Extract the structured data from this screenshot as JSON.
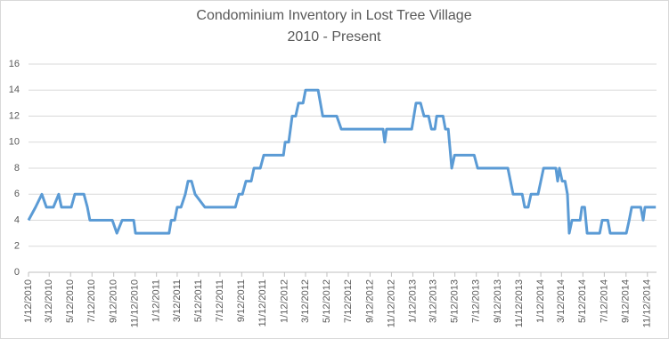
{
  "chart_data": {
    "type": "line",
    "title": [
      "Condominium Inventory in Lost Tree Village",
      "2010 - Present"
    ],
    "x": [
      "1/12/2010",
      "2/1/2010",
      "2/19/2010",
      "3/4/2010",
      "3/24/2010",
      "4/8/2010",
      "4/16/2010",
      "5/14/2010",
      "5/24/2010",
      "6/19/2010",
      "6/29/2010",
      "7/6/2010",
      "9/8/2010",
      "9/21/2010",
      "10/6/2010",
      "11/8/2010",
      "11/13/2010",
      "2/17/2011",
      "2/23/2011",
      "3/5/2011",
      "3/12/2011",
      "3/23/2011",
      "4/4/2011",
      "4/12/2011",
      "4/22/2011",
      "5/2/2011",
      "5/30/2011",
      "8/25/2011",
      "9/4/2011",
      "9/14/2011",
      "9/24/2011",
      "10/9/2011",
      "10/17/2011",
      "11/4/2011",
      "11/14/2011",
      "1/9/2012",
      "1/14/2012",
      "1/24/2012",
      "2/3/2012",
      "2/13/2012",
      "2/21/2012",
      "3/5/2012",
      "3/12/2012",
      "4/17/2012",
      "4/30/2012",
      "6/9/2012",
      "6/22/2012",
      "10/19/2012",
      "10/24/2012",
      "10/29/2012",
      "1/9/2013",
      "1/21/2013",
      "2/3/2013",
      "2/13/2013",
      "2/26/2013",
      "3/6/2013",
      "3/16/2013",
      "3/21/2013",
      "4/8/2013",
      "4/15/2013",
      "4/23/2013",
      "5/3/2013",
      "5/11/2013",
      "7/6/2013",
      "7/16/2013",
      "10/10/2013",
      "10/25/2013",
      "11/20/2013",
      "11/27/2013",
      "12/7/2013",
      "12/15/2013",
      "1/4/2014",
      "1/20/2014",
      "2/24/2014",
      "3/1/2014",
      "3/6/2014",
      "3/14/2014",
      "3/22/2014",
      "3/29/2014",
      "4/3/2014",
      "4/11/2014",
      "5/4/2014",
      "5/9/2014",
      "5/17/2014",
      "5/24/2014",
      "6/29/2014",
      "7/6/2014",
      "7/22/2014",
      "7/29/2014",
      "9/13/2014",
      "9/21/2014",
      "9/28/2014",
      "10/24/2014",
      "10/31/2014",
      "11/5/2014",
      "12/6/2014"
    ],
    "series": [
      {
        "color": "#5b9bd5",
        "values": [
          4,
          5,
          6,
          5,
          5,
          6,
          5,
          5,
          6,
          6,
          5,
          4,
          4,
          3,
          4,
          4,
          3,
          3,
          4,
          4,
          5,
          5,
          6,
          7,
          7,
          6,
          5,
          5,
          6,
          6,
          7,
          7,
          8,
          8,
          9,
          9,
          10,
          10,
          12,
          12,
          13,
          13,
          14,
          14,
          12,
          12,
          11,
          11,
          10,
          11,
          11,
          13,
          13,
          12,
          12,
          11,
          11,
          12,
          12,
          11,
          11,
          8,
          9,
          9,
          8,
          8,
          6,
          6,
          5,
          5,
          6,
          6,
          8,
          8,
          7,
          8,
          7,
          7,
          6,
          3,
          4,
          4,
          5,
          5,
          3,
          3,
          4,
          4,
          3,
          3,
          4,
          5,
          5,
          4,
          5,
          5
        ]
      }
    ],
    "xlim": [
      "1/12/2010",
      "12/8/2014"
    ],
    "xticks": [
      "1/12/2010",
      "3/12/2010",
      "5/12/2010",
      "7/12/2010",
      "9/12/2010",
      "11/12/2010",
      "1/12/2011",
      "3/12/2011",
      "5/12/2011",
      "7/12/2011",
      "9/12/2011",
      "11/12/2011",
      "1/12/2012",
      "3/12/2012",
      "5/12/2012",
      "7/12/2012",
      "9/12/2012",
      "11/12/2012",
      "1/12/2013",
      "3/12/2013",
      "5/12/2013",
      "7/12/2013",
      "9/12/2013",
      "11/12/2013",
      "1/12/2014",
      "3/12/2014",
      "5/12/2014",
      "7/12/2014",
      "9/12/2014",
      "11/12/2014"
    ],
    "ylim": [
      0,
      16
    ],
    "yticks": [
      0,
      2,
      4,
      6,
      8,
      10,
      12,
      14,
      16
    ],
    "grid": true
  }
}
